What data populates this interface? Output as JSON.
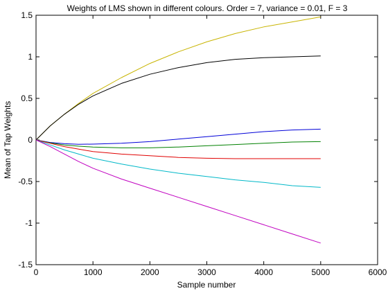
{
  "chart_data": {
    "type": "line",
    "title": "Weights of LMS shown in different colours. Order = 7, variance = 0.01, F = 3",
    "xlabel": "Sample number",
    "ylabel": "Mean of Tap Weights",
    "xlim": [
      0,
      6000
    ],
    "ylim": [
      -1.5,
      1.5
    ],
    "xticks": [
      0,
      1000,
      2000,
      3000,
      4000,
      5000,
      6000
    ],
    "xtick_labels": [
      "0",
      "1000",
      "2000",
      "3000",
      "4000",
      "5000",
      "6000"
    ],
    "yticks": [
      1.5,
      1,
      0.5,
      0,
      -0.5,
      -1,
      -1.5
    ],
    "ytick_labels": [
      "1.5",
      "1",
      "0.5",
      "0",
      "-0.5",
      "-1",
      "-1.5"
    ],
    "grid": false,
    "legend": "none",
    "x": [
      0,
      250,
      500,
      750,
      1000,
      1500,
      2000,
      2500,
      3000,
      3500,
      4000,
      4500,
      5000
    ],
    "series": [
      {
        "color": "#c8b400",
        "values": [
          0,
          0.17,
          0.31,
          0.44,
          0.56,
          0.75,
          0.92,
          1.06,
          1.18,
          1.28,
          1.36,
          1.42,
          1.48
        ]
      },
      {
        "color": "#000000",
        "values": [
          0,
          0.17,
          0.31,
          0.43,
          0.53,
          0.68,
          0.79,
          0.87,
          0.93,
          0.97,
          0.99,
          1.0,
          1.01
        ]
      },
      {
        "color": "#0000d8",
        "values": [
          0,
          -0.03,
          -0.045,
          -0.052,
          -0.05,
          -0.04,
          -0.02,
          0.01,
          0.04,
          0.07,
          0.1,
          0.12,
          0.13
        ]
      },
      {
        "color": "#008000",
        "values": [
          0,
          -0.035,
          -0.06,
          -0.075,
          -0.085,
          -0.095,
          -0.095,
          -0.085,
          -0.07,
          -0.055,
          -0.04,
          -0.025,
          -0.02
        ]
      },
      {
        "color": "#e00000",
        "values": [
          0,
          -0.04,
          -0.08,
          -0.11,
          -0.14,
          -0.17,
          -0.19,
          -0.21,
          -0.22,
          -0.225,
          -0.225,
          -0.225,
          -0.225
        ]
      },
      {
        "color": "#00b8c8",
        "values": [
          0,
          -0.06,
          -0.12,
          -0.17,
          -0.22,
          -0.29,
          -0.35,
          -0.4,
          -0.44,
          -0.48,
          -0.51,
          -0.55,
          -0.57
        ]
      },
      {
        "color": "#c000c0",
        "values": [
          0,
          -0.08,
          -0.17,
          -0.26,
          -0.34,
          -0.47,
          -0.58,
          -0.69,
          -0.8,
          -0.91,
          -1.02,
          -1.13,
          -1.24
        ]
      }
    ]
  }
}
